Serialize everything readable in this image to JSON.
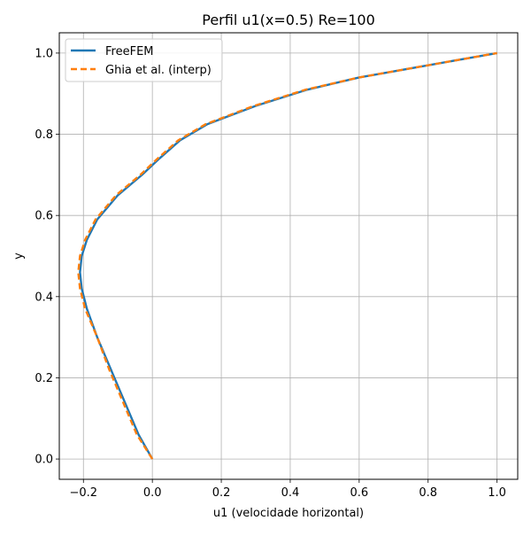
{
  "chart_data": {
    "type": "line",
    "title": "Perfil u1(x=0.5) Re=100",
    "xlabel": "u1 (velocidade horizontal)",
    "ylabel": "y",
    "xlim": [
      -0.27,
      1.06
    ],
    "ylim": [
      -0.05,
      1.05
    ],
    "xticks": [
      -0.2,
      0.0,
      0.2,
      0.4,
      0.6,
      0.8,
      1.0
    ],
    "xtick_labels": [
      "−0.2",
      "0.0",
      "0.2",
      "0.4",
      "0.6",
      "0.8",
      "1.0"
    ],
    "yticks": [
      0.0,
      0.2,
      0.4,
      0.6,
      0.8,
      1.0
    ],
    "ytick_labels": [
      "0.0",
      "0.2",
      "0.4",
      "0.6",
      "0.8",
      "1.0"
    ],
    "grid": true,
    "legend_position": "top-left",
    "series": [
      {
        "name": "FreeFEM",
        "color": "#1f77b4",
        "style": "solid",
        "points": [
          [
            0.0,
            0.0
          ],
          [
            -0.04,
            0.06
          ],
          [
            -0.08,
            0.14
          ],
          [
            -0.12,
            0.22
          ],
          [
            -0.16,
            0.3
          ],
          [
            -0.19,
            0.37
          ],
          [
            -0.205,
            0.42
          ],
          [
            -0.21,
            0.46
          ],
          [
            -0.205,
            0.5
          ],
          [
            -0.19,
            0.54
          ],
          [
            -0.16,
            0.59
          ],
          [
            -0.1,
            0.65
          ],
          [
            -0.03,
            0.7
          ],
          [
            0.02,
            0.74
          ],
          [
            0.08,
            0.785
          ],
          [
            0.16,
            0.825
          ],
          [
            0.3,
            0.87
          ],
          [
            0.45,
            0.91
          ],
          [
            0.6,
            0.94
          ],
          [
            0.8,
            0.97
          ],
          [
            1.0,
            1.0
          ]
        ]
      },
      {
        "name": "Ghia et al. (interp)",
        "color": "#ff7f0e",
        "style": "dashed",
        "points": [
          [
            0.0,
            0.0
          ],
          [
            -0.045,
            0.06
          ],
          [
            -0.085,
            0.14
          ],
          [
            -0.125,
            0.22
          ],
          [
            -0.16,
            0.3
          ],
          [
            -0.195,
            0.37
          ],
          [
            -0.21,
            0.42
          ],
          [
            -0.215,
            0.46
          ],
          [
            -0.21,
            0.5
          ],
          [
            -0.195,
            0.54
          ],
          [
            -0.165,
            0.59
          ],
          [
            -0.105,
            0.65
          ],
          [
            -0.035,
            0.7
          ],
          [
            0.015,
            0.74
          ],
          [
            0.075,
            0.785
          ],
          [
            0.155,
            0.825
          ],
          [
            0.295,
            0.87
          ],
          [
            0.445,
            0.91
          ],
          [
            0.6,
            0.94
          ],
          [
            0.8,
            0.97
          ],
          [
            1.0,
            1.0
          ]
        ]
      }
    ]
  }
}
